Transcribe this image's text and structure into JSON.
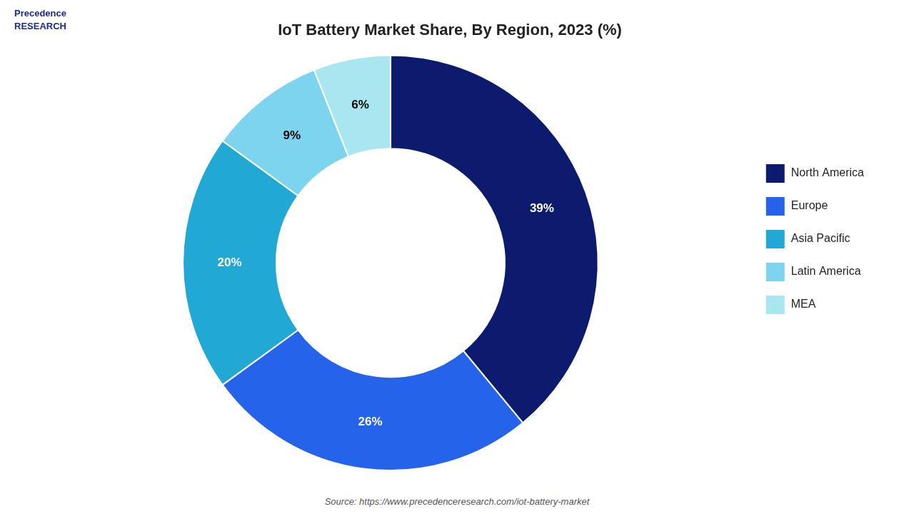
{
  "chart_data": {
    "type": "doughnut",
    "title": "IoT Battery Market Share, By Region, 2023 (%)",
    "categories": [
      "North America",
      "Europe",
      "Asia Pacific",
      "Latin America",
      "MEA"
    ],
    "values": [
      39,
      26,
      20,
      9,
      6
    ],
    "value_labels": [
      "39%",
      "26%",
      "20%",
      "9%",
      "6%"
    ],
    "colors": [
      "#0d1b6e",
      "#2563eb",
      "#22a8d4",
      "#7dd4ef",
      "#a8e6f0"
    ],
    "data_labels": true,
    "legend": "right",
    "annotations": [
      "Precedence\nRESEARCH",
      "Source: https://www.precedenceresearch.com/iot-battery-market"
    ]
  }
}
